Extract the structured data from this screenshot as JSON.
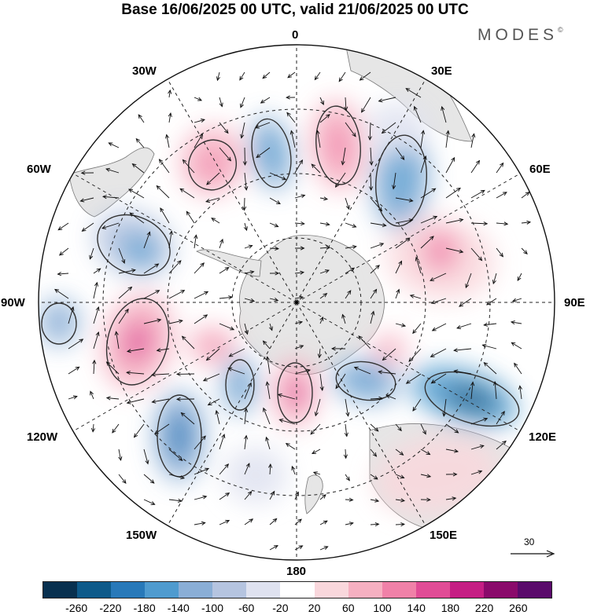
{
  "title": "Base 16/06/2025 00 UTC, valid 21/06/2025 00 UTC",
  "brand": {
    "name": "MODES",
    "mark": "©"
  },
  "map": {
    "projection": "south-polar-stereographic",
    "longitude_labels": [
      "0",
      "30E",
      "60E",
      "90E",
      "120E",
      "150E",
      "180",
      "150W",
      "120W",
      "90W",
      "60W",
      "30W"
    ],
    "graticule": "dashed",
    "land_color": "#e6e6e6",
    "coastline_color": "#777777",
    "vector_color": "#111111",
    "reference_vector": {
      "label": "30",
      "icon": "arrow-right-icon"
    }
  },
  "colorbar": {
    "tick_labels": [
      "-260",
      "-220",
      "-180",
      "-140",
      "-100",
      "-60",
      "-20",
      "20",
      "60",
      "100",
      "140",
      "180",
      "220",
      "260"
    ],
    "colors": [
      "#08304f",
      "#0e5a8a",
      "#2879b9",
      "#4f9bcf",
      "#8aaed6",
      "#b5c4e0",
      "#dfe2f0",
      "#ffffff",
      "#f9d7dc",
      "#f6b0c1",
      "#f081a8",
      "#e14c96",
      "#c51e84",
      "#8a0a6b",
      "#5a0a6b"
    ]
  }
}
